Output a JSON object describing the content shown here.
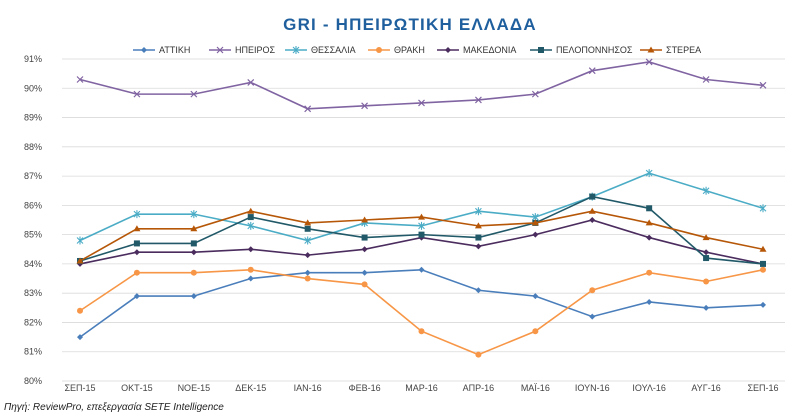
{
  "chart_data": {
    "type": "line",
    "title": "GRI - ΗΠΕΙΡΩΤΙΚΗ ΕΛΛΑΔΑ",
    "xlabel": "",
    "ylabel": "",
    "categories": [
      "ΣΕΠ-15",
      "ΟΚΤ-15",
      "ΝΟΕ-15",
      "ΔΕΚ-15",
      "ΙΑΝ-16",
      "ΦΕΒ-16",
      "ΜΑΡ-16",
      "ΑΠΡ-16",
      "ΜΑΪ-16",
      "ΙΟΥΝ-16",
      "ΙΟΥΛ-16",
      "ΑΥΓ-16",
      "ΣΕΠ-16"
    ],
    "y_ticks": [
      "80%",
      "81%",
      "82%",
      "83%",
      "84%",
      "85%",
      "86%",
      "87%",
      "88%",
      "89%",
      "90%",
      "91%"
    ],
    "ylim": [
      80,
      91
    ],
    "legend_position": "top",
    "series": [
      {
        "name": "ΑΤΤΙΚΗ",
        "color": "#4a7ebb",
        "marker": "diamond",
        "values": [
          81.5,
          82.9,
          82.9,
          83.5,
          83.7,
          83.7,
          83.8,
          83.1,
          82.9,
          82.2,
          82.7,
          82.5,
          82.6
        ]
      },
      {
        "name": "ΗΠΕΙΡΟΣ",
        "color": "#8064a2",
        "marker": "x",
        "values": [
          90.3,
          89.8,
          89.8,
          90.2,
          89.3,
          89.4,
          89.5,
          89.6,
          89.8,
          90.6,
          90.9,
          90.3,
          90.1
        ]
      },
      {
        "name": "ΘΕΣΣΑΛΙΑ",
        "color": "#4bacc6",
        "marker": "star",
        "values": [
          84.8,
          85.7,
          85.7,
          85.3,
          84.8,
          85.4,
          85.3,
          85.8,
          85.6,
          86.3,
          87.1,
          86.5,
          85.9
        ]
      },
      {
        "name": "ΘΡΑΚΗ",
        "color": "#f79646",
        "marker": "circle",
        "values": [
          82.4,
          83.7,
          83.7,
          83.8,
          83.5,
          83.3,
          81.7,
          80.9,
          81.7,
          83.1,
          83.7,
          83.4,
          83.8
        ]
      },
      {
        "name": "ΜΑΚΕΔΟΝΙΑ",
        "color": "#4b2c5e",
        "marker": "diamond",
        "values": [
          84.0,
          84.4,
          84.4,
          84.5,
          84.3,
          84.5,
          84.9,
          84.6,
          85.0,
          85.5,
          84.9,
          84.4,
          84.0
        ]
      },
      {
        "name": "ΠΕΛΟΠΟΝΝΗΣΟΣ",
        "color": "#215968",
        "marker": "square",
        "values": [
          84.1,
          84.7,
          84.7,
          85.6,
          85.2,
          84.9,
          85.0,
          84.9,
          85.4,
          86.3,
          85.9,
          84.2,
          84.0
        ]
      },
      {
        "name": "ΣΤΕΡΕΑ",
        "color": "#b65708",
        "marker": "triangle",
        "values": [
          84.1,
          85.2,
          85.2,
          85.8,
          85.4,
          85.5,
          85.6,
          85.3,
          85.4,
          85.8,
          85.4,
          84.9,
          84.5
        ]
      }
    ]
  },
  "source_note": "Πηγή: ReviewPro, επεξεργασία SETE Intelligence"
}
